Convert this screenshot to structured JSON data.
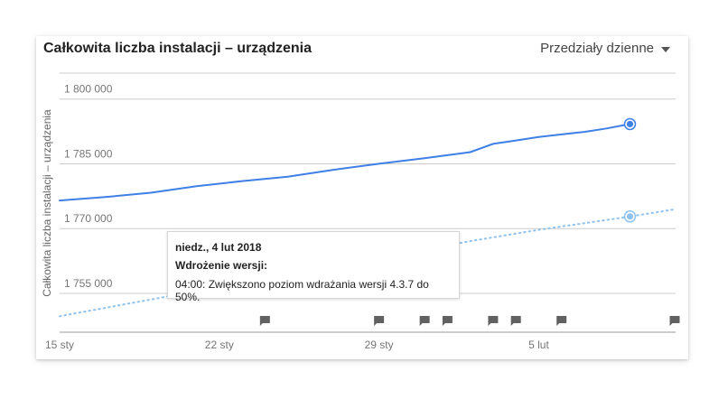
{
  "card": {
    "title": "Całkowita liczba instalacji – urządzenia",
    "interval_label": "Przedziały dzienne"
  },
  "colors": {
    "series_primary": "#3f7fe6",
    "series_secondary": "#8fc3ef",
    "grid": "#cccccc",
    "marker": "#616161"
  },
  "chart_data": {
    "type": "line",
    "ylabel": "Całkowita liczba instalacji – urządzenia",
    "xlabel": "",
    "ylim": [
      1746000,
      1806000
    ],
    "yticks": [
      {
        "value": 1800000,
        "label": "1 800 000"
      },
      {
        "value": 1785000,
        "label": "1 785 000"
      },
      {
        "value": 1770000,
        "label": "1 770 000"
      },
      {
        "value": 1755000,
        "label": "1 755 000"
      }
    ],
    "xlim": [
      "2018-01-15",
      "2018-02-11"
    ],
    "xticks": [
      {
        "date": "2018-01-15",
        "label": "15 sty"
      },
      {
        "date": "2018-01-22",
        "label": "22 sty"
      },
      {
        "date": "2018-01-29",
        "label": "29 sty"
      },
      {
        "date": "2018-02-05",
        "label": "5 lut"
      }
    ],
    "series": [
      {
        "style": "solid",
        "x": [
          "2018-01-15",
          "2018-01-17",
          "2018-01-19",
          "2018-01-21",
          "2018-01-23",
          "2018-01-25",
          "2018-01-27",
          "2018-01-29",
          "2018-01-31",
          "2018-02-01",
          "2018-02-02",
          "2018-02-03",
          "2018-02-04",
          "2018-02-05",
          "2018-02-06",
          "2018-02-07",
          "2018-02-08",
          "2018-02-09"
        ],
        "values": [
          1776500,
          1777300,
          1778300,
          1779800,
          1781000,
          1782000,
          1783600,
          1785000,
          1786300,
          1787000,
          1787700,
          1789600,
          1790400,
          1791200,
          1791800,
          1792400,
          1793200,
          1794200
        ]
      },
      {
        "style": "dotted",
        "x": [
          "2018-01-15",
          "2018-01-18",
          "2018-01-21",
          "2018-01-24",
          "2018-01-27",
          "2018-01-30",
          "2018-02-02",
          "2018-02-05",
          "2018-02-08",
          "2018-02-09",
          "2018-02-11"
        ],
        "values": [
          1749700,
          1752600,
          1755500,
          1758400,
          1761300,
          1764200,
          1767100,
          1769700,
          1772000,
          1772800,
          1774500
        ]
      }
    ],
    "event_markers": [
      "2018-01-24",
      "2018-01-29",
      "2018-01-31",
      "2018-02-01",
      "2018-02-03",
      "2018-02-04",
      "2018-02-06",
      "2018-02-12"
    ],
    "tooltip": {
      "date": "niedz., 4 lut 2018",
      "heading": "Wdrożenie wersji:",
      "text": "04:00: Zwiększono poziom wdrażania wersji 4.3.7 do 50%."
    }
  }
}
